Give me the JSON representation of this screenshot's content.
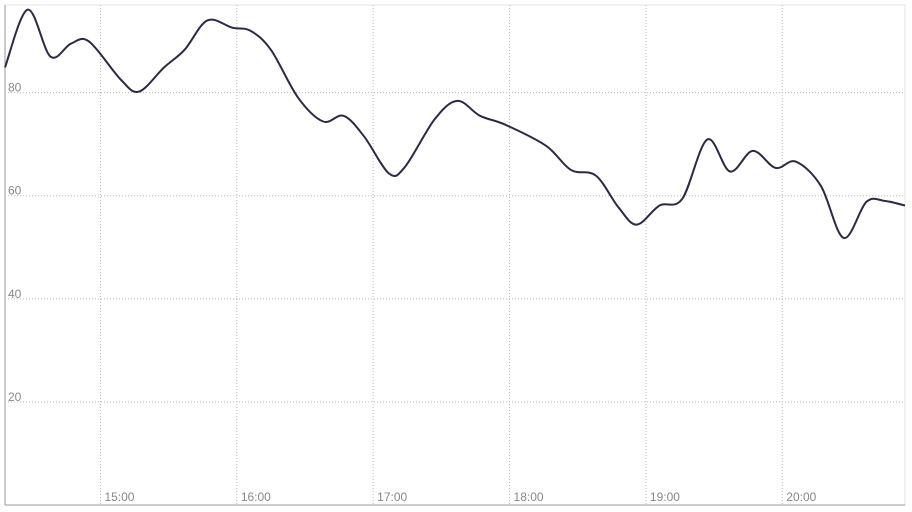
{
  "chart_data": {
    "type": "line",
    "color": "#2b2a45",
    "grid": true,
    "x": [
      "14:18",
      "14:28",
      "14:38",
      "14:47",
      "14:55",
      "15:09",
      "15:17",
      "15:28",
      "15:37",
      "15:47",
      "15:58",
      "16:06",
      "16:15",
      "16:27",
      "16:38",
      "16:47",
      "16:56",
      "17:07",
      "17:14",
      "17:27",
      "17:37",
      "17:47",
      "17:58",
      "18:16",
      "18:27",
      "18:38",
      "18:48",
      "18:56",
      "19:06",
      "19:16",
      "19:27",
      "19:37",
      "19:47",
      "19:57",
      "20:06",
      "20:17",
      "20:27",
      "20:37",
      "20:45",
      "20:54"
    ],
    "values": [
      84.9,
      96.1,
      87.0,
      89.5,
      89.9,
      82.5,
      80.2,
      84.9,
      88.3,
      94.0,
      92.6,
      92.0,
      88.3,
      79.0,
      74.4,
      75.5,
      71.5,
      64.3,
      65.6,
      74.8,
      78.4,
      75.5,
      73.8,
      69.7,
      65.0,
      63.9,
      57.7,
      54.4,
      58.1,
      59.4,
      70.9,
      64.7,
      68.7,
      65.4,
      66.6,
      61.9,
      51.8,
      58.8,
      59.0,
      58.1
    ],
    "xlim": [
      "14:18",
      "20:54"
    ],
    "xticks": [
      "15:00",
      "16:00",
      "17:00",
      "18:00",
      "19:00",
      "20:00"
    ],
    "ylim": [
      0,
      97
    ],
    "yticks": [
      20,
      40,
      60,
      80
    ]
  }
}
